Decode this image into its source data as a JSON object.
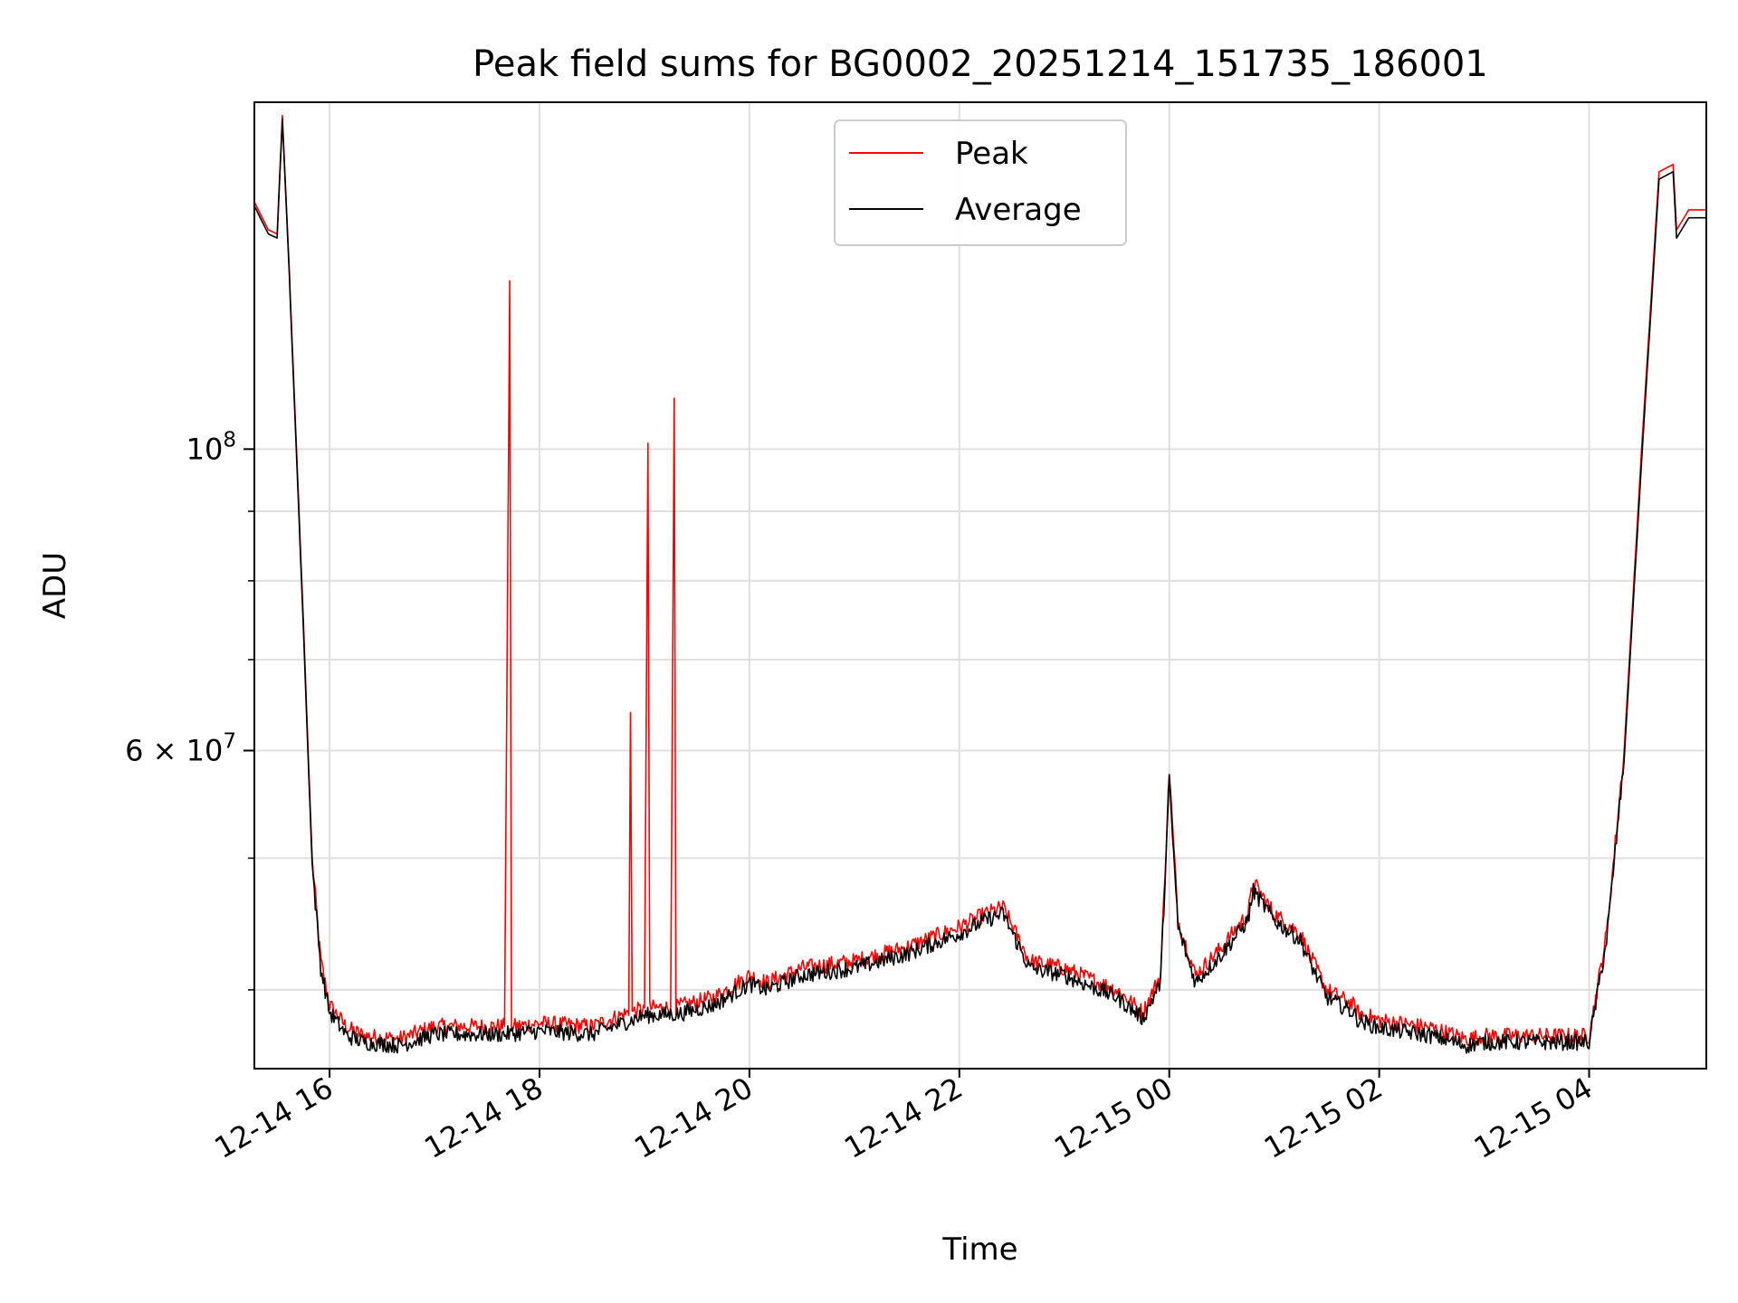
{
  "chart_data": {
    "type": "line",
    "title": "Peak field sums for BG0002_20251214_151735_186001",
    "xlabel": "Time",
    "ylabel": "ADU",
    "x_ticks": [
      "12-14 16",
      "12-14 18",
      "12-14 20",
      "12-14 22",
      "12-15 00",
      "12-15 02",
      "12-15 04"
    ],
    "y_tick_labels": [
      {
        "value": 100000000,
        "mantissa": "",
        "exponent": "8"
      },
      {
        "value": 60000000,
        "mantissa": "6",
        "exponent": "7"
      }
    ],
    "y_minor_ticks": [
      40000000,
      50000000,
      70000000,
      80000000,
      90000000,
      200000000
    ],
    "xlim": [
      "2025-12-14 15:17",
      "2025-12-15 05:07"
    ],
    "ylim": [
      35000000,
      180000000
    ],
    "yscale": "log",
    "grid": true,
    "legend_position": "upper center",
    "series": [
      {
        "name": "Peak",
        "color": "#ff0000",
        "x": [
          "2025-12-14 15:17",
          "2025-12-14 15:25",
          "2025-12-14 15:30",
          "2025-12-14 15:33",
          "2025-12-14 15:37",
          "2025-12-14 15:45",
          "2025-12-14 15:50",
          "2025-12-14 15:55",
          "2025-12-14 16:00",
          "2025-12-14 16:10",
          "2025-12-14 16:20",
          "2025-12-14 16:40",
          "2025-12-14 17:00",
          "2025-12-14 17:40",
          "2025-12-14 17:43",
          "2025-12-14 17:44",
          "2025-12-14 17:46",
          "2025-12-14 18:00",
          "2025-12-14 18:30",
          "2025-12-14 18:51",
          "2025-12-14 18:52",
          "2025-12-14 18:53",
          "2025-12-14 19:00",
          "2025-12-14 19:02",
          "2025-12-14 19:03",
          "2025-12-14 19:05",
          "2025-12-14 19:15",
          "2025-12-14 19:17",
          "2025-12-14 19:18",
          "2025-12-14 19:20",
          "2025-12-14 19:40",
          "2025-12-14 20:00",
          "2025-12-14 20:10",
          "2025-12-14 20:30",
          "2025-12-14 21:00",
          "2025-12-14 21:30",
          "2025-12-14 22:00",
          "2025-12-14 22:15",
          "2025-12-14 22:25",
          "2025-12-14 22:40",
          "2025-12-14 23:00",
          "2025-12-14 23:30",
          "2025-12-14 23:45",
          "2025-12-14 23:55",
          "2025-12-15 00:00",
          "2025-12-15 00:05",
          "2025-12-15 00:15",
          "2025-12-15 00:30",
          "2025-12-15 00:45",
          "2025-12-15 00:48",
          "2025-12-15 01:00",
          "2025-12-15 01:15",
          "2025-12-15 01:20",
          "2025-12-15 01:30",
          "2025-12-15 01:45",
          "2025-12-15 01:48",
          "2025-12-15 02:00",
          "2025-12-15 02:30",
          "2025-12-15 02:50",
          "2025-12-15 03:00",
          "2025-12-15 03:10",
          "2025-12-15 03:30",
          "2025-12-15 04:00",
          "2025-12-15 04:10",
          "2025-12-15 04:20",
          "2025-12-15 04:30",
          "2025-12-15 04:40",
          "2025-12-15 04:48",
          "2025-12-15 04:50",
          "2025-12-15 04:57",
          "2025-12-15 04:58",
          "2025-12-15 05:07"
        ],
        "y": [
          152000000,
          145000000,
          144000000,
          176000000,
          135000000,
          75000000,
          50000000,
          42000000,
          39000000,
          37500000,
          37000000,
          36800000,
          37600000,
          37600000,
          133000000,
          37600000,
          37600000,
          37800000,
          37600000,
          38500000,
          64000000,
          38500000,
          38800000,
          101000000,
          38800000,
          38800000,
          38800000,
          109000000,
          38800000,
          38900000,
          39500000,
          41000000,
          40500000,
          41500000,
          42000000,
          43000000,
          44500000,
          45500000,
          46000000,
          42000000,
          41500000,
          40000000,
          38500000,
          41000000,
          58000000,
          45000000,
          41000000,
          43000000,
          45500000,
          48000000,
          45500000,
          44000000,
          42500000,
          40000000,
          39000000,
          38500000,
          38000000,
          37500000,
          36800000,
          37000000,
          37000000,
          37000000,
          37000000,
          44000000,
          60000000,
          100000000,
          160000000,
          162000000,
          145000000,
          150000000,
          150000000,
          150000000
        ]
      },
      {
        "name": "Average",
        "color": "#000000",
        "x": [
          "2025-12-14 15:17",
          "2025-12-14 15:25",
          "2025-12-14 15:30",
          "2025-12-14 15:33",
          "2025-12-14 15:37",
          "2025-12-14 15:45",
          "2025-12-14 15:50",
          "2025-12-14 15:55",
          "2025-12-14 16:00",
          "2025-12-14 16:10",
          "2025-12-14 16:20",
          "2025-12-14 16:40",
          "2025-12-14 17:00",
          "2025-12-14 17:40",
          "2025-12-14 18:00",
          "2025-12-14 18:30",
          "2025-12-14 19:00",
          "2025-12-14 19:20",
          "2025-12-14 19:40",
          "2025-12-14 20:00",
          "2025-12-14 20:10",
          "2025-12-14 20:30",
          "2025-12-14 21:00",
          "2025-12-14 21:30",
          "2025-12-14 22:00",
          "2025-12-14 22:15",
          "2025-12-14 22:25",
          "2025-12-14 22:40",
          "2025-12-14 23:00",
          "2025-12-14 23:30",
          "2025-12-14 23:45",
          "2025-12-14 23:55",
          "2025-12-15 00:00",
          "2025-12-15 00:05",
          "2025-12-15 00:15",
          "2025-12-15 00:30",
          "2025-12-15 00:45",
          "2025-12-15 00:48",
          "2025-12-15 01:00",
          "2025-12-15 01:15",
          "2025-12-15 01:20",
          "2025-12-15 01:30",
          "2025-12-15 01:45",
          "2025-12-15 01:48",
          "2025-12-15 02:00",
          "2025-12-15 02:30",
          "2025-12-15 02:50",
          "2025-12-15 03:00",
          "2025-12-15 03:10",
          "2025-12-15 03:30",
          "2025-12-15 04:00",
          "2025-12-15 04:10",
          "2025-12-15 04:20",
          "2025-12-15 04:30",
          "2025-12-15 04:40",
          "2025-12-15 04:48",
          "2025-12-15 04:50",
          "2025-12-15 04:57",
          "2025-12-15 04:58",
          "2025-12-15 05:07"
        ],
        "y": [
          151000000,
          144000000,
          143000000,
          175000000,
          134000000,
          74000000,
          49500000,
          41500000,
          38500000,
          37000000,
          36600000,
          36400000,
          37100000,
          37100000,
          37300000,
          37100000,
          38300000,
          38400000,
          39000000,
          40400000,
          40000000,
          41000000,
          41500000,
          42500000,
          44000000,
          45000000,
          45500000,
          41500000,
          41000000,
          39500000,
          38100000,
          40500000,
          57000000,
          44500000,
          40500000,
          42500000,
          45000000,
          47300000,
          45000000,
          43500000,
          42000000,
          39500000,
          38500000,
          38000000,
          37500000,
          37000000,
          36400000,
          36600000,
          36600000,
          36600000,
          36600000,
          43500000,
          59000000,
          98000000,
          158000000,
          160000000,
          143000000,
          148000000,
          148000000,
          148000000
        ]
      }
    ]
  }
}
